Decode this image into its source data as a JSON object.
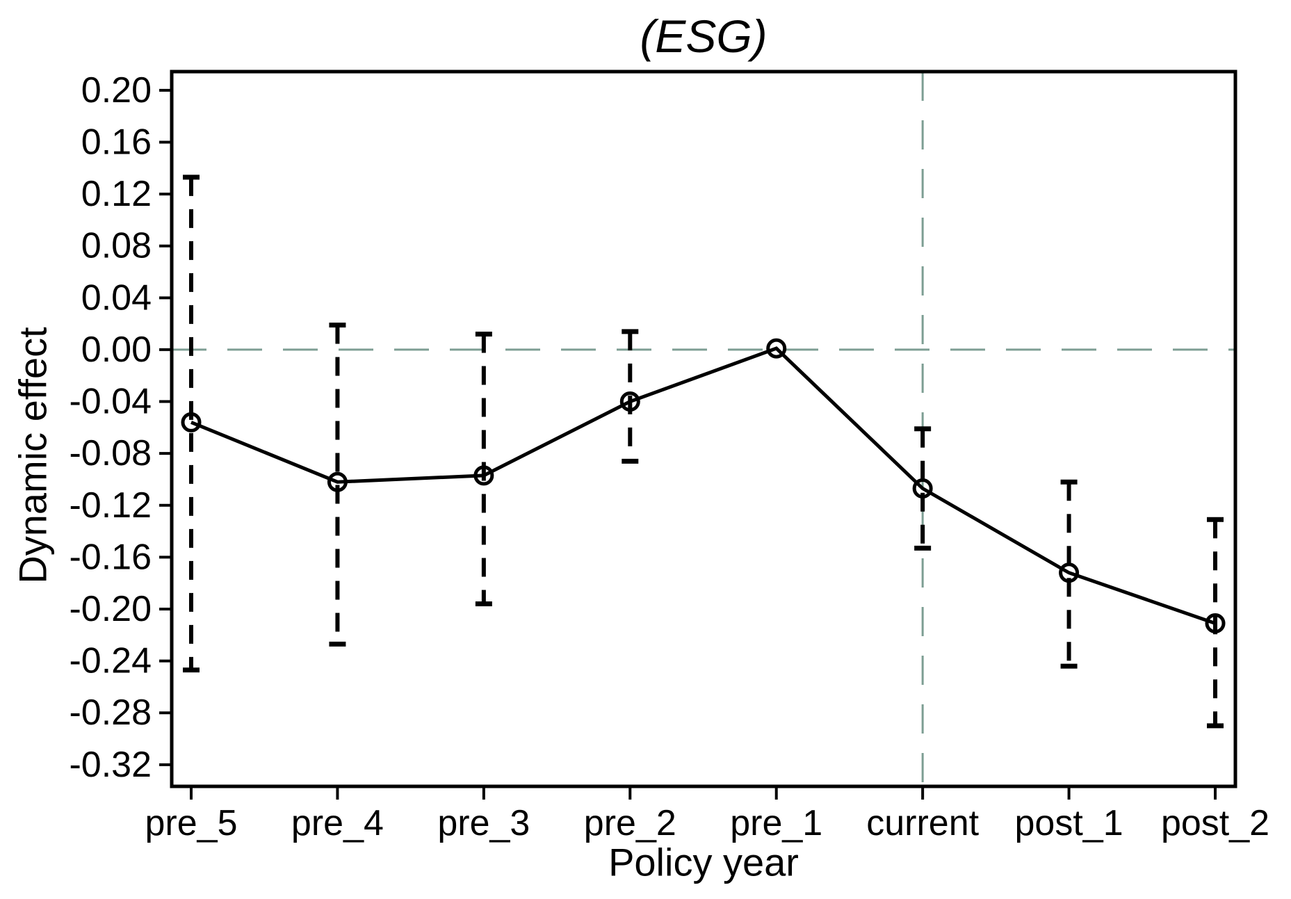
{
  "title": "(ESG)",
  "colors": {
    "series": "#000000",
    "reference_line": "#7d9e93",
    "background": "#ffffff",
    "text": "#000000"
  },
  "chart_data": {
    "type": "line",
    "title": "(ESG)",
    "xlabel": "Policy year",
    "ylabel": "Dynamic effect",
    "categories": [
      "pre_5",
      "pre_4",
      "pre_3",
      "pre_2",
      "pre_1",
      "current",
      "post_1",
      "post_2"
    ],
    "series": [
      {
        "name": "Dynamic effect",
        "values": [
          -0.056,
          -0.102,
          -0.097,
          -0.04,
          0.001,
          -0.107,
          -0.172,
          -0.211
        ]
      }
    ],
    "confidence_intervals": {
      "lower": [
        -0.247,
        -0.227,
        -0.196,
        -0.086,
        null,
        -0.153,
        -0.244,
        -0.29
      ],
      "upper": [
        0.133,
        0.019,
        0.012,
        0.014,
        null,
        -0.061,
        -0.102,
        -0.131
      ]
    },
    "points": [
      {
        "category": "pre_5",
        "coef": -0.056,
        "ci_lower": -0.247,
        "ci_upper": 0.133
      },
      {
        "category": "pre_4",
        "coef": -0.102,
        "ci_lower": -0.227,
        "ci_upper": 0.019
      },
      {
        "category": "pre_3",
        "coef": -0.097,
        "ci_lower": -0.196,
        "ci_upper": 0.012
      },
      {
        "category": "pre_2",
        "coef": -0.04,
        "ci_lower": -0.086,
        "ci_upper": 0.014
      },
      {
        "category": "pre_1",
        "coef": 0.001,
        "ci_lower": null,
        "ci_upper": null
      },
      {
        "category": "current",
        "coef": -0.107,
        "ci_lower": -0.153,
        "ci_upper": -0.061
      },
      {
        "category": "post_1",
        "coef": -0.172,
        "ci_lower": -0.244,
        "ci_upper": -0.102
      },
      {
        "category": "post_2",
        "coef": -0.211,
        "ci_lower": -0.29,
        "ci_upper": -0.131
      }
    ],
    "yticks": [
      0.2,
      0.16,
      0.12,
      0.08,
      0.04,
      0.0,
      -0.04,
      -0.08,
      -0.12,
      -0.16,
      -0.2,
      -0.24,
      -0.28,
      -0.32
    ],
    "ylim": [
      -0.337,
      0.214
    ],
    "reference_lines": {
      "horizontal_at": 0.0,
      "vertical_at_category": "current"
    },
    "grid": false,
    "legend": "none",
    "marker": "open-circle",
    "error_bar_style": "dashed-with-caps"
  }
}
